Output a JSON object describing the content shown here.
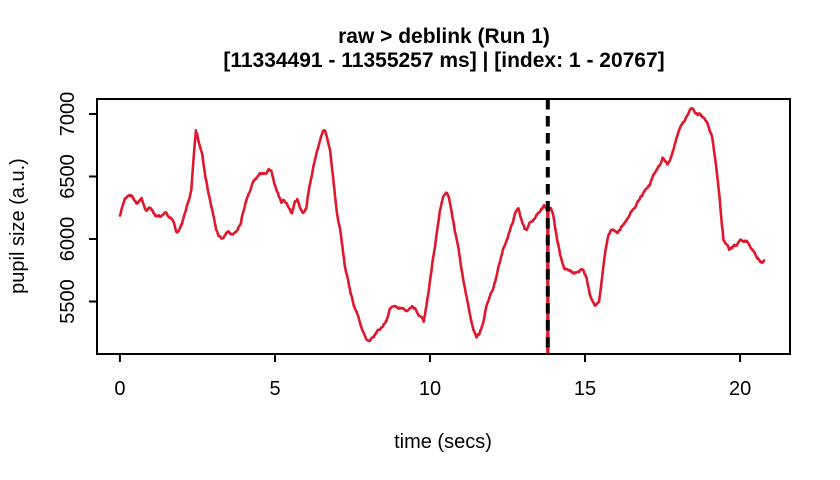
{
  "chart_data": {
    "type": "line",
    "title": "raw > deblink (Run 1)",
    "subtitle": "[11334491 - 11355257 ms] | [index: 1 - 20767]",
    "xlabel": "time (secs)",
    "ylabel": "pupil size (a.u.)",
    "time_range_ms": [
      11334491,
      11355257
    ],
    "index_range": [
      1,
      20767
    ],
    "xticks": [
      0,
      5,
      10,
      15,
      20
    ],
    "yticks": [
      5500,
      6000,
      6500,
      7000
    ],
    "xlim": [
      -0.74,
      21.61
    ],
    "ylim": [
      5080,
      7120
    ],
    "grid": false,
    "background": "#ffffff",
    "border_color": "#000000",
    "marker": {
      "x": 13.8,
      "line_style": "dashed",
      "line_color": "#000000",
      "underlay_color": "#e0182d",
      "underlay_from_value": 6255
    },
    "series": [
      {
        "name": "pupil size",
        "color": "#e0182d",
        "points": [
          [
            0,
            6195
          ],
          [
            0.15,
            6320
          ],
          [
            0.3,
            6360
          ],
          [
            0.45,
            6330
          ],
          [
            0.55,
            6285
          ],
          [
            0.7,
            6310
          ],
          [
            0.85,
            6235
          ],
          [
            1,
            6250
          ],
          [
            1.1,
            6210
          ],
          [
            1.2,
            6180
          ],
          [
            1.35,
            6170
          ],
          [
            1.5,
            6195
          ],
          [
            1.6,
            6160
          ],
          [
            1.7,
            6140
          ],
          [
            1.85,
            6050
          ],
          [
            2,
            6115
          ],
          [
            2.1,
            6195
          ],
          [
            2.2,
            6290
          ],
          [
            2.3,
            6380
          ],
          [
            2.38,
            6640
          ],
          [
            2.45,
            6860
          ],
          [
            2.55,
            6760
          ],
          [
            2.65,
            6690
          ],
          [
            2.8,
            6450
          ],
          [
            2.95,
            6260
          ],
          [
            3.1,
            6075
          ],
          [
            3.2,
            6020
          ],
          [
            3.3,
            5995
          ],
          [
            3.4,
            6030
          ],
          [
            3.5,
            6060
          ],
          [
            3.6,
            6020
          ],
          [
            3.7,
            6035
          ],
          [
            3.8,
            6070
          ],
          [
            3.9,
            6130
          ],
          [
            4,
            6240
          ],
          [
            4.1,
            6315
          ],
          [
            4.2,
            6380
          ],
          [
            4.3,
            6450
          ],
          [
            4.45,
            6500
          ],
          [
            4.6,
            6530
          ],
          [
            4.7,
            6510
          ],
          [
            4.8,
            6545
          ],
          [
            4.9,
            6520
          ],
          [
            5,
            6430
          ],
          [
            5.1,
            6360
          ],
          [
            5.2,
            6300
          ],
          [
            5.28,
            6315
          ],
          [
            5.38,
            6290
          ],
          [
            5.48,
            6235
          ],
          [
            5.55,
            6210
          ],
          [
            5.65,
            6300
          ],
          [
            5.72,
            6320
          ],
          [
            5.8,
            6260
          ],
          [
            5.9,
            6210
          ],
          [
            6,
            6250
          ],
          [
            6.1,
            6400
          ],
          [
            6.2,
            6530
          ],
          [
            6.3,
            6650
          ],
          [
            6.42,
            6770
          ],
          [
            6.55,
            6850
          ],
          [
            6.62,
            6855
          ],
          [
            6.7,
            6790
          ],
          [
            6.78,
            6700
          ],
          [
            6.9,
            6430
          ],
          [
            7,
            6200
          ],
          [
            7.1,
            6075
          ],
          [
            7.25,
            5790
          ],
          [
            7.4,
            5610
          ],
          [
            7.55,
            5470
          ],
          [
            7.7,
            5370
          ],
          [
            7.85,
            5250
          ],
          [
            7.95,
            5185
          ],
          [
            8.05,
            5170
          ],
          [
            8.15,
            5195
          ],
          [
            8.3,
            5260
          ],
          [
            8.45,
            5295
          ],
          [
            8.6,
            5360
          ],
          [
            8.7,
            5435
          ],
          [
            8.8,
            5460
          ],
          [
            8.95,
            5450
          ],
          [
            9.1,
            5460
          ],
          [
            9.2,
            5420
          ],
          [
            9.3,
            5440
          ],
          [
            9.42,
            5478
          ],
          [
            9.52,
            5455
          ],
          [
            9.62,
            5380
          ],
          [
            9.72,
            5355
          ],
          [
            9.8,
            5330
          ],
          [
            9.9,
            5490
          ],
          [
            10,
            5660
          ],
          [
            10.1,
            5860
          ],
          [
            10.22,
            6050
          ],
          [
            10.32,
            6210
          ],
          [
            10.42,
            6315
          ],
          [
            10.52,
            6365
          ],
          [
            10.6,
            6330
          ],
          [
            10.7,
            6200
          ],
          [
            10.8,
            6060
          ],
          [
            10.9,
            5940
          ],
          [
            11,
            5780
          ],
          [
            11.1,
            5630
          ],
          [
            11.2,
            5515
          ],
          [
            11.3,
            5380
          ],
          [
            11.4,
            5280
          ],
          [
            11.5,
            5220
          ],
          [
            11.58,
            5235
          ],
          [
            11.7,
            5330
          ],
          [
            11.82,
            5460
          ],
          [
            11.92,
            5540
          ],
          [
            12.02,
            5600
          ],
          [
            12.14,
            5690
          ],
          [
            12.25,
            5810
          ],
          [
            12.35,
            5915
          ],
          [
            12.45,
            5965
          ],
          [
            12.6,
            6080
          ],
          [
            12.72,
            6180
          ],
          [
            12.85,
            6250
          ],
          [
            12.95,
            6165
          ],
          [
            13.05,
            6080
          ],
          [
            13.12,
            6060
          ],
          [
            13.25,
            6130
          ],
          [
            13.4,
            6185
          ],
          [
            13.55,
            6220
          ],
          [
            13.68,
            6255
          ],
          [
            13.78,
            6242
          ],
          [
            13.9,
            6250
          ],
          [
            14,
            6160
          ],
          [
            14.1,
            5990
          ],
          [
            14.2,
            5870
          ],
          [
            14.32,
            5780
          ],
          [
            14.45,
            5742
          ],
          [
            14.6,
            5732
          ],
          [
            14.75,
            5745
          ],
          [
            14.87,
            5772
          ],
          [
            14.95,
            5758
          ],
          [
            15.05,
            5690
          ],
          [
            15.15,
            5550
          ],
          [
            15.25,
            5480
          ],
          [
            15.35,
            5458
          ],
          [
            15.45,
            5495
          ],
          [
            15.55,
            5680
          ],
          [
            15.65,
            5900
          ],
          [
            15.75,
            6030
          ],
          [
            15.85,
            6075
          ],
          [
            15.95,
            6065
          ],
          [
            16.05,
            6060
          ],
          [
            16.15,
            6090
          ],
          [
            16.25,
            6125
          ],
          [
            16.35,
            6150
          ],
          [
            16.45,
            6195
          ],
          [
            16.55,
            6250
          ],
          [
            16.68,
            6290
          ],
          [
            16.8,
            6335
          ],
          [
            16.9,
            6370
          ],
          [
            17,
            6395
          ],
          [
            17.1,
            6430
          ],
          [
            17.2,
            6495
          ],
          [
            17.32,
            6555
          ],
          [
            17.42,
            6595
          ],
          [
            17.5,
            6645
          ],
          [
            17.58,
            6612
          ],
          [
            17.65,
            6592
          ],
          [
            17.75,
            6622
          ],
          [
            17.85,
            6715
          ],
          [
            17.95,
            6815
          ],
          [
            18.05,
            6895
          ],
          [
            18.15,
            6935
          ],
          [
            18.27,
            6975
          ],
          [
            18.38,
            7030
          ],
          [
            18.45,
            7045
          ],
          [
            18.52,
            7005
          ],
          [
            18.62,
            6990
          ],
          [
            18.7,
            7010
          ],
          [
            18.8,
            6975
          ],
          [
            18.92,
            6935
          ],
          [
            19.02,
            6870
          ],
          [
            19.1,
            6815
          ],
          [
            19.16,
            6710
          ],
          [
            19.22,
            6610
          ],
          [
            19.28,
            6470
          ],
          [
            19.34,
            6330
          ],
          [
            19.4,
            6150
          ],
          [
            19.47,
            5990
          ],
          [
            19.55,
            5950
          ],
          [
            19.65,
            5915
          ],
          [
            19.77,
            5928
          ],
          [
            19.9,
            5950
          ],
          [
            20,
            5990
          ],
          [
            20.08,
            5972
          ],
          [
            20.18,
            5978
          ],
          [
            20.28,
            5962
          ],
          [
            20.38,
            5920
          ],
          [
            20.5,
            5870
          ],
          [
            20.62,
            5835
          ],
          [
            20.7,
            5815
          ],
          [
            20.77,
            5828
          ]
        ]
      }
    ]
  }
}
